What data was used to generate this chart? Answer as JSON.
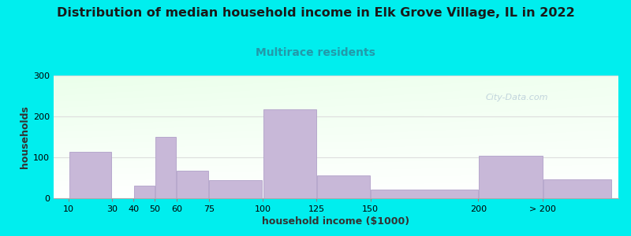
{
  "title": "Distribution of median household income in Elk Grove Village, IL in 2022",
  "subtitle": "Multirace residents",
  "xlabel": "household income ($1000)",
  "ylabel": "households",
  "background_color": "#00EEEE",
  "bar_color": "#c8b8d8",
  "bar_edge_color": "#b0a0c8",
  "title_fontsize": 11.5,
  "subtitle_fontsize": 10,
  "subtitle_color": "#2299aa",
  "xlabel_fontsize": 9,
  "ylabel_fontsize": 9,
  "tick_fontsize": 8,
  "categories": [
    "10",
    "30",
    "40",
    "50",
    "60",
    "75",
    "100",
    "125",
    "150",
    "200",
    "> 200"
  ],
  "values": [
    113,
    0,
    30,
    150,
    68,
    45,
    218,
    56,
    22,
    103,
    47
  ],
  "bar_lefts": [
    10,
    30,
    40,
    50,
    60,
    75,
    100,
    125,
    150,
    200,
    230
  ],
  "bar_rights": [
    30,
    40,
    50,
    60,
    75,
    100,
    125,
    150,
    200,
    230,
    262
  ],
  "tick_positions": [
    10,
    30,
    40,
    50,
    60,
    75,
    100,
    125,
    150,
    200,
    230
  ],
  "xlim": [
    3,
    265
  ],
  "ylim": [
    0,
    300
  ],
  "yticks": [
    0,
    100,
    200,
    300
  ],
  "watermark": "City-Data.com",
  "watermark_color": "#b8ccd8",
  "grid_color": "#dddddd"
}
